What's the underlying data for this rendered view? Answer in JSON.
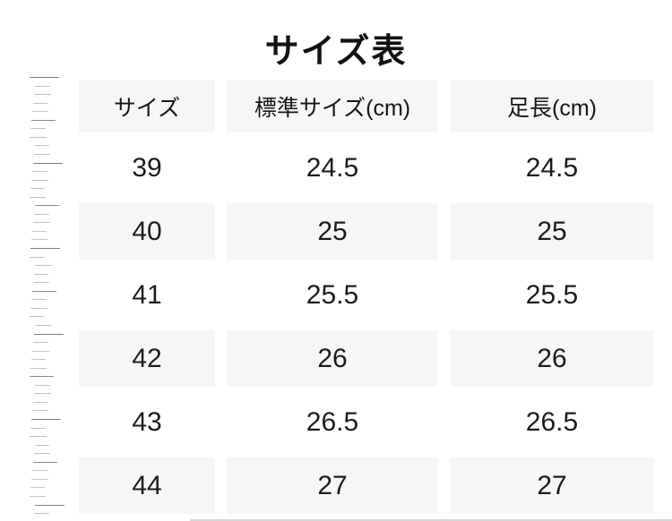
{
  "page": {
    "title": "サイズ表"
  },
  "table": {
    "columns": [
      {
        "key": "size",
        "label": "サイズ"
      },
      {
        "key": "standard",
        "label": "標準サイズ(cm)"
      },
      {
        "key": "foot",
        "label": "足長(cm)"
      }
    ],
    "rows": [
      {
        "size": "39",
        "standard": "24.5",
        "foot": "24.5"
      },
      {
        "size": "40",
        "standard": "25",
        "foot": "25"
      },
      {
        "size": "41",
        "standard": "25.5",
        "foot": "25.5"
      },
      {
        "size": "42",
        "standard": "26",
        "foot": "26"
      },
      {
        "size": "43",
        "standard": "26.5",
        "foot": "26.5"
      },
      {
        "size": "44",
        "standard": "27",
        "foot": "27"
      }
    ]
  },
  "decor": {
    "ruler": "ruler-ticks-graphic"
  },
  "colors": {
    "background": "#ffffff",
    "row_alt_bg": "#f6f6f6",
    "text": "#1a1a1a",
    "tick_short": "#c2c2c2",
    "tick_long": "#8a8a8a"
  }
}
